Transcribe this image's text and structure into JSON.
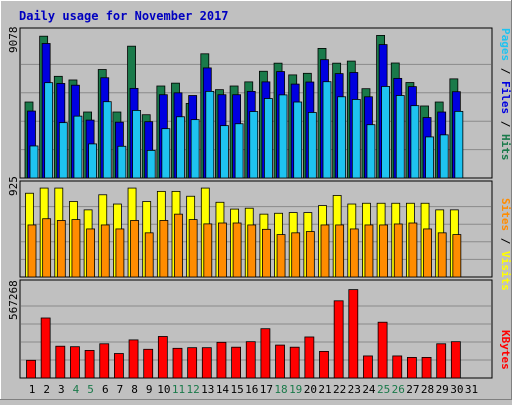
{
  "title": "Daily usage for November 2017",
  "colors": {
    "background": "#c0c0c0",
    "title": "#0000c0",
    "hits": "#1a7a4a",
    "files": "#0000e0",
    "pages": "#1ec3f0",
    "visits": "#ffff00",
    "sites": "#ff8c00",
    "kbytes": "#ff0000",
    "weekend": "#1a7a4a",
    "weekday": "#000000"
  },
  "chart_data": [
    {
      "type": "bar",
      "panel": "top",
      "scale_label": "9078",
      "ylim": [
        0,
        9078
      ],
      "ylabel_parts": [
        {
          "text": "Pages",
          "color_key": "pages"
        },
        {
          "text": " / ",
          "color_key": "weekday"
        },
        {
          "text": "Files",
          "color_key": "files"
        },
        {
          "text": " / ",
          "color_key": "weekday"
        },
        {
          "text": "Hits",
          "color_key": "hits"
        }
      ],
      "categories": [
        "1",
        "2",
        "3",
        "4",
        "5",
        "6",
        "7",
        "8",
        "9",
        "10",
        "11",
        "12",
        "13",
        "14",
        "15",
        "16",
        "17",
        "18",
        "19",
        "20",
        "21",
        "22",
        "23",
        "24",
        "25",
        "26",
        "27",
        "28",
        "29",
        "30",
        "31"
      ],
      "series": [
        {
          "name": "Hits",
          "color_key": "hits",
          "values": [
            4790,
            8940,
            6410,
            6180,
            4160,
            6840,
            4160,
            8310,
            3990,
            5800,
            5980,
            4700,
            7830,
            5570,
            5800,
            6060,
            6730,
            7240,
            6500,
            6600,
            8170,
            7240,
            7370,
            5630,
            8990,
            7250,
            6020,
            4540,
            4790,
            6250,
            0
          ]
        },
        {
          "name": "Files",
          "color_key": "files",
          "values": [
            4220,
            8480,
            5960,
            5850,
            3650,
            6320,
            3520,
            5650,
            3550,
            5250,
            5370,
            5200,
            6940,
            5250,
            5250,
            5460,
            6060,
            6710,
            5920,
            6050,
            7460,
            6580,
            6650,
            5120,
            8410,
            6280,
            5760,
            3810,
            4160,
            5440,
            0
          ]
        },
        {
          "name": "Pages",
          "color_key": "pages",
          "values": [
            2020,
            6010,
            3490,
            3900,
            2150,
            4810,
            2000,
            4260,
            1740,
            3110,
            3860,
            3680,
            5460,
            3300,
            3420,
            4190,
            5010,
            5240,
            4790,
            4130,
            6070,
            5120,
            4950,
            3360,
            5770,
            5200,
            4560,
            2590,
            2720,
            4200,
            0
          ]
        }
      ]
    },
    {
      "type": "bar",
      "panel": "middle",
      "scale_label": "925",
      "ylim": [
        0,
        925
      ],
      "ylabel_parts": [
        {
          "text": "Sites",
          "color_key": "sites"
        },
        {
          "text": " / ",
          "color_key": "weekday"
        },
        {
          "text": "Visits",
          "color_key": "visits"
        }
      ],
      "categories": [
        "1",
        "2",
        "3",
        "4",
        "5",
        "6",
        "7",
        "8",
        "9",
        "10",
        "11",
        "12",
        "13",
        "14",
        "15",
        "16",
        "17",
        "18",
        "19",
        "20",
        "21",
        "22",
        "23",
        "24",
        "25",
        "26",
        "27",
        "28",
        "29",
        "30",
        "31"
      ],
      "series": [
        {
          "name": "Visits",
          "color_key": "visits",
          "values": [
            861,
            914,
            914,
            776,
            690,
            845,
            750,
            914,
            776,
            880,
            880,
            830,
            914,
            768,
            698,
            707,
            646,
            655,
            662,
            662,
            734,
            838,
            750,
            758,
            758,
            758,
            758,
            758,
            690,
            690,
            0
          ]
        },
        {
          "name": "Sites",
          "color_key": "sites",
          "values": [
            535,
            599,
            581,
            590,
            494,
            535,
            494,
            581,
            454,
            581,
            646,
            590,
            546,
            555,
            555,
            535,
            490,
            436,
            454,
            467,
            535,
            535,
            494,
            535,
            535,
            545,
            555,
            494,
            454,
            436,
            0
          ]
        }
      ]
    },
    {
      "type": "bar",
      "panel": "bottom",
      "scale_label": "567268",
      "ylim": [
        0,
        567268
      ],
      "ylabel_parts": [
        {
          "text": "KBytes",
          "color_key": "kbytes"
        }
      ],
      "categories": [
        "1",
        "2",
        "3",
        "4",
        "5",
        "6",
        "7",
        "8",
        "9",
        "10",
        "11",
        "12",
        "13",
        "14",
        "15",
        "16",
        "17",
        "18",
        "19",
        "20",
        "21",
        "22",
        "23",
        "24",
        "25",
        "26",
        "27",
        "28",
        "29",
        "30",
        "31"
      ],
      "series": [
        {
          "name": "KBytes",
          "color_key": "kbytes",
          "values": [
            109000,
            370000,
            196000,
            193000,
            170000,
            211000,
            151000,
            235000,
            177000,
            256000,
            183000,
            187000,
            187000,
            220000,
            190000,
            224000,
            304000,
            203000,
            190000,
            253000,
            164000,
            476000,
            545000,
            136000,
            344000,
            136000,
            127000,
            127000,
            211000,
            224000,
            0
          ]
        }
      ]
    }
  ],
  "x_axis": {
    "labels": [
      "1",
      "2",
      "3",
      "4",
      "5",
      "6",
      "7",
      "8",
      "9",
      "10",
      "11",
      "12",
      "13",
      "14",
      "15",
      "16",
      "17",
      "18",
      "19",
      "20",
      "21",
      "22",
      "23",
      "24",
      "25",
      "26",
      "27",
      "28",
      "29",
      "30",
      "31"
    ],
    "weekend_days": [
      "4",
      "5",
      "11",
      "12",
      "18",
      "19",
      "25",
      "26"
    ]
  }
}
